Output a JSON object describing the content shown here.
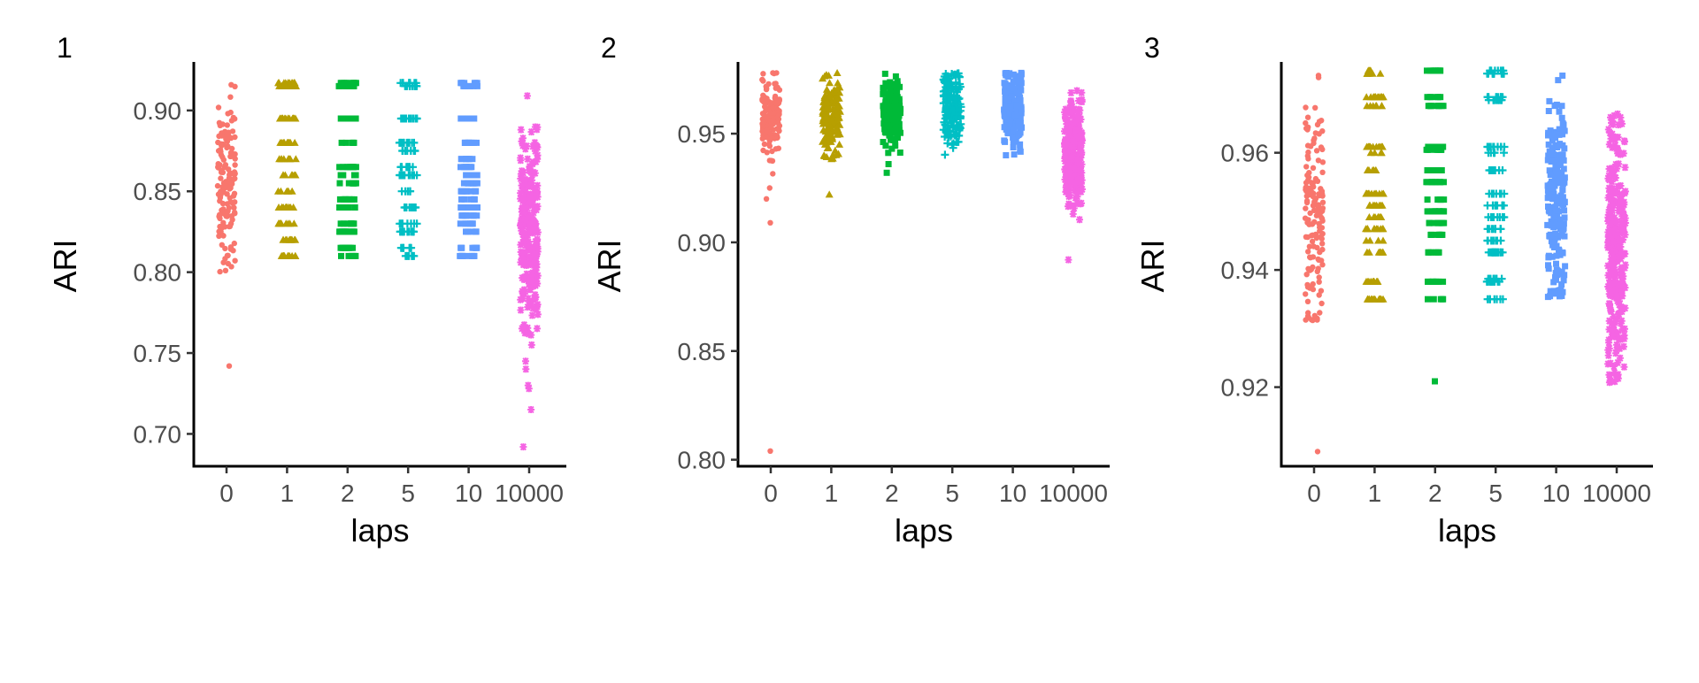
{
  "chart_data": [
    {
      "type": "scatter",
      "panel_tag": "1",
      "title": "",
      "xlabel": "laps",
      "ylabel": "ARI",
      "categories": [
        "0",
        "1",
        "2",
        "5",
        "10",
        "10000"
      ],
      "ylim": [
        0.68,
        0.93
      ],
      "yticks": [
        0.7,
        0.75,
        0.8,
        0.85,
        0.9
      ],
      "ytick_labels": [
        "0.70",
        "0.75",
        "0.80",
        "0.85",
        "0.90"
      ],
      "grid": false,
      "legend": "none",
      "series": [
        {
          "category": "0",
          "color": "#F8766D",
          "shape": "circle",
          "range": [
            0.8,
            0.92
          ],
          "center": 0.855,
          "spread": 0.025,
          "n": 140,
          "continuous": true,
          "outliers": [
            0.742
          ]
        },
        {
          "category": "1",
          "color": "#B79F00",
          "shape": "triangle",
          "range": [
            0.81,
            0.917
          ],
          "levels": [
            0.917,
            0.915,
            0.895,
            0.88,
            0.87,
            0.86,
            0.85,
            0.84,
            0.83,
            0.82,
            0.81
          ],
          "n": 120
        },
        {
          "category": "2",
          "color": "#00BA38",
          "shape": "square",
          "range": [
            0.81,
            0.917
          ],
          "levels": [
            0.917,
            0.915,
            0.895,
            0.88,
            0.865,
            0.86,
            0.855,
            0.845,
            0.84,
            0.83,
            0.825,
            0.815,
            0.81
          ],
          "n": 120
        },
        {
          "category": "5",
          "color": "#00BFC4",
          "shape": "plus",
          "range": [
            0.81,
            0.917
          ],
          "levels": [
            0.917,
            0.915,
            0.895,
            0.88,
            0.875,
            0.865,
            0.86,
            0.85,
            0.84,
            0.83,
            0.825,
            0.815,
            0.81
          ],
          "n": 120
        },
        {
          "category": "10",
          "color": "#619CFF",
          "shape": "square",
          "range": [
            0.81,
            0.917
          ],
          "levels": [
            0.917,
            0.915,
            0.895,
            0.88,
            0.87,
            0.865,
            0.86,
            0.855,
            0.85,
            0.845,
            0.84,
            0.835,
            0.83,
            0.825,
            0.815,
            0.81
          ],
          "n": 140
        },
        {
          "category": "10000",
          "color": "#F564E3",
          "shape": "asterisk",
          "range": [
            0.76,
            0.89
          ],
          "center": 0.825,
          "spread": 0.03,
          "n": 260,
          "continuous": true,
          "outliers": [
            0.909,
            0.755,
            0.745,
            0.74,
            0.73,
            0.728,
            0.715,
            0.692
          ]
        }
      ]
    },
    {
      "type": "scatter",
      "panel_tag": "2",
      "title": "",
      "xlabel": "laps",
      "ylabel": "ARI",
      "categories": [
        "0",
        "1",
        "2",
        "5",
        "10",
        "10000"
      ],
      "ylim": [
        0.797,
        0.983
      ],
      "yticks": [
        0.8,
        0.85,
        0.9,
        0.95
      ],
      "ytick_labels": [
        "0.80",
        "0.85",
        "0.90",
        "0.95"
      ],
      "grid": false,
      "legend": "none",
      "series": [
        {
          "category": "0",
          "color": "#F8766D",
          "shape": "circle",
          "range": [
            0.93,
            0.979
          ],
          "center": 0.958,
          "spread": 0.01,
          "n": 150,
          "continuous": true,
          "outliers": [
            0.925,
            0.92,
            0.909,
            0.804
          ]
        },
        {
          "category": "1",
          "color": "#B79F00",
          "shape": "triangle",
          "range": [
            0.938,
            0.978
          ],
          "center": 0.959,
          "spread": 0.009,
          "n": 160,
          "continuous": true,
          "outliers": [
            0.922
          ]
        },
        {
          "category": "2",
          "color": "#00BA38",
          "shape": "square",
          "range": [
            0.94,
            0.978
          ],
          "center": 0.96,
          "spread": 0.008,
          "n": 160,
          "continuous": true,
          "outliers": [
            0.936,
            0.932
          ]
        },
        {
          "category": "5",
          "color": "#00BFC4",
          "shape": "plus",
          "range": [
            0.938,
            0.978
          ],
          "center": 0.961,
          "spread": 0.009,
          "n": 170,
          "continuous": true
        },
        {
          "category": "10",
          "color": "#619CFF",
          "shape": "square",
          "range": [
            0.94,
            0.978
          ],
          "center": 0.962,
          "spread": 0.009,
          "n": 200,
          "continuous": true
        },
        {
          "category": "10000",
          "color": "#F564E3",
          "shape": "asterisk",
          "range": [
            0.91,
            0.972
          ],
          "center": 0.94,
          "spread": 0.011,
          "n": 280,
          "continuous": true,
          "outliers": [
            0.892
          ]
        }
      ]
    },
    {
      "type": "scatter",
      "panel_tag": "3",
      "title": "",
      "xlabel": "laps",
      "ylabel": "ARI",
      "categories": [
        "0",
        "1",
        "2",
        "5",
        "10",
        "10000"
      ],
      "ylim": [
        0.9065,
        0.9755
      ],
      "yticks": [
        0.92,
        0.94,
        0.96
      ],
      "ytick_labels": [
        "0.92",
        "0.94",
        "0.96"
      ],
      "grid": false,
      "legend": "none",
      "series": [
        {
          "category": "0",
          "color": "#F8766D",
          "shape": "circle",
          "range": [
            0.931,
            0.974
          ],
          "center": 0.95,
          "spread": 0.009,
          "n": 150,
          "continuous": true,
          "outliers": [
            0.909
          ]
        },
        {
          "category": "1",
          "color": "#B79F00",
          "shape": "triangle",
          "range": [
            0.935,
            0.974
          ],
          "levels": [
            0.974,
            0.9735,
            0.9695,
            0.968,
            0.961,
            0.96,
            0.957,
            0.953,
            0.951,
            0.949,
            0.947,
            0.945,
            0.943,
            0.938,
            0.935
          ],
          "n": 130
        },
        {
          "category": "2",
          "color": "#00BA38",
          "shape": "square",
          "range": [
            0.935,
            0.974
          ],
          "levels": [
            0.974,
            0.9695,
            0.968,
            0.961,
            0.9605,
            0.957,
            0.955,
            0.952,
            0.95,
            0.948,
            0.946,
            0.943,
            0.938,
            0.935
          ],
          "n": 130,
          "outliers": [
            0.921
          ]
        },
        {
          "category": "5",
          "color": "#00BFC4",
          "shape": "plus",
          "range": [
            0.935,
            0.974
          ],
          "levels": [
            0.974,
            0.9735,
            0.9695,
            0.969,
            0.961,
            0.96,
            0.957,
            0.953,
            0.951,
            0.949,
            0.947,
            0.945,
            0.943,
            0.9385,
            0.938,
            0.935
          ],
          "n": 150
        },
        {
          "category": "10",
          "color": "#619CFF",
          "shape": "square",
          "range": [
            0.935,
            0.974
          ],
          "center": 0.952,
          "spread": 0.01,
          "n": 190,
          "continuous": true
        },
        {
          "category": "10000",
          "color": "#F564E3",
          "shape": "asterisk",
          "range": [
            0.92,
            0.967
          ],
          "center": 0.943,
          "spread": 0.011,
          "n": 300,
          "continuous": true
        }
      ]
    }
  ]
}
